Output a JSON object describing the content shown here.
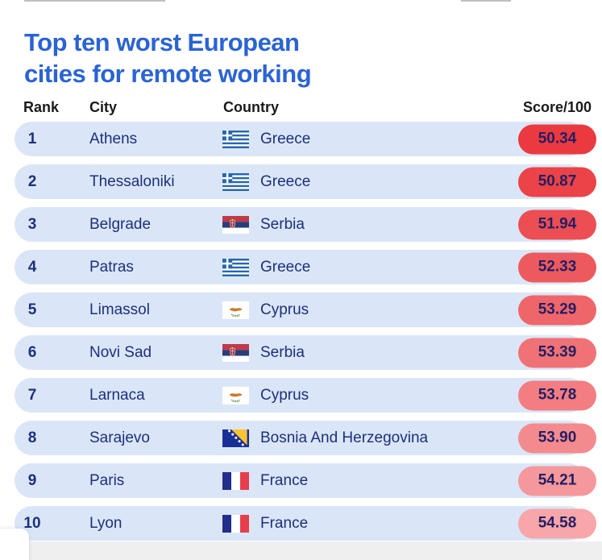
{
  "title": {
    "line1": "Top ten worst European",
    "line2": "cities for remote working"
  },
  "columns": {
    "rank": "Rank",
    "city": "City",
    "country": "Country",
    "score": "Score/100"
  },
  "rows": [
    {
      "rank": "1",
      "city": "Athens",
      "country": "Greece",
      "flag": "greece",
      "flag_icon": "greece-flag",
      "score": "50.34",
      "badge_color": "#ea3a40"
    },
    {
      "rank": "2",
      "city": "Thessaloniki",
      "country": "Greece",
      "flag": "greece",
      "flag_icon": "greece-flag",
      "score": "50.87",
      "badge_color": "#eb4347"
    },
    {
      "rank": "3",
      "city": "Belgrade",
      "country": "Serbia",
      "flag": "serbia",
      "flag_icon": "serbia-flag",
      "score": "51.94",
      "badge_color": "#ec4e53"
    },
    {
      "rank": "4",
      "city": "Patras",
      "country": "Greece",
      "flag": "greece",
      "flag_icon": "greece-flag",
      "score": "52.33",
      "badge_color": "#ed5a5e"
    },
    {
      "rank": "5",
      "city": "Limassol",
      "country": "Cyprus",
      "flag": "cyprus",
      "flag_icon": "cyprus-flag",
      "score": "53.29",
      "badge_color": "#ef666a"
    },
    {
      "rank": "6",
      "city": "Novi Sad",
      "country": "Serbia",
      "flag": "serbia",
      "flag_icon": "serbia-flag",
      "score": "53.39",
      "badge_color": "#f07276"
    },
    {
      "rank": "7",
      "city": "Larnaca",
      "country": "Cyprus",
      "flag": "cyprus",
      "flag_icon": "cyprus-flag",
      "score": "53.78",
      "badge_color": "#f27e82"
    },
    {
      "rank": "8",
      "city": "Sarajevo",
      "country": "Bosnia And Herzegovina",
      "flag": "bosnia",
      "flag_icon": "bosnia-and-herzegovina-flag",
      "score": "53.90",
      "badge_color": "#f38b8e"
    },
    {
      "rank": "9",
      "city": "Paris",
      "country": "France",
      "flag": "france",
      "flag_icon": "france-flag",
      "score": "54.21",
      "badge_color": "#f5989b"
    },
    {
      "rank": "10",
      "city": "Lyon",
      "country": "France",
      "flag": "france",
      "flag_icon": "france-flag",
      "score": "54.58",
      "badge_color": "#f7a6a9"
    }
  ],
  "colors": {
    "title_blue": "#2a63d4",
    "row_background": "#dae6f7",
    "row_text_navy": "#1d2f7c",
    "score_text": "#241e63",
    "badge_red_top": "#ea3a40",
    "badge_pink_bottom": "#f7a6a9"
  },
  "chart_data": {
    "type": "table",
    "title": "Top ten worst European cities for remote working",
    "columns": [
      "Rank",
      "City",
      "Country",
      "Score/100"
    ],
    "rows": [
      [
        1,
        "Athens",
        "Greece",
        50.34
      ],
      [
        2,
        "Thessaloniki",
        "Greece",
        50.87
      ],
      [
        3,
        "Belgrade",
        "Serbia",
        51.94
      ],
      [
        4,
        "Patras",
        "Greece",
        52.33
      ],
      [
        5,
        "Limassol",
        "Cyprus",
        53.29
      ],
      [
        6,
        "Novi Sad",
        "Serbia",
        53.39
      ],
      [
        7,
        "Larnaca",
        "Cyprus",
        53.78
      ],
      [
        8,
        "Sarajevo",
        "Bosnia And Herzegovina",
        53.9
      ],
      [
        9,
        "Paris",
        "France",
        54.21
      ],
      [
        10,
        "Lyon",
        "France",
        54.58
      ]
    ],
    "notes": "Score/100 badges shade from red (worst/lowest score, rank 1) to light pink (rank 10)"
  }
}
